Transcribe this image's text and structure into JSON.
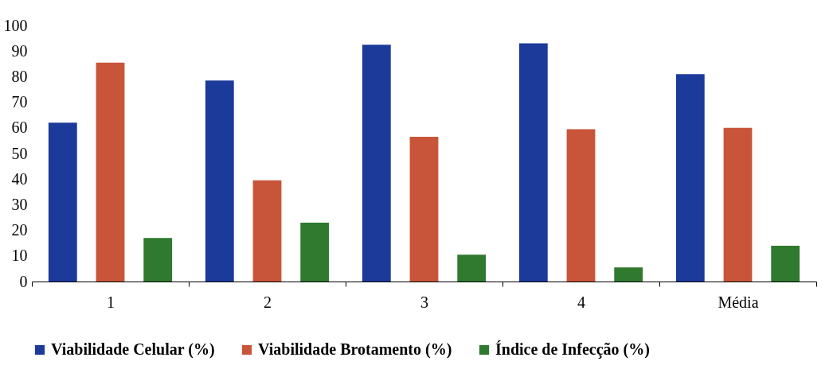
{
  "chart_data": {
    "type": "bar",
    "categories": [
      "1",
      "2",
      "3",
      "4",
      "Média"
    ],
    "series": [
      {
        "name": "Viabilidade Celular (%)",
        "color": "#1c3a9a",
        "values": [
          62,
          78.5,
          92.5,
          93,
          81
        ]
      },
      {
        "name": "Viabilidade Brotamento (%)",
        "color": "#c8553a",
        "values": [
          85.5,
          39.5,
          56.5,
          59.5,
          60
        ]
      },
      {
        "name": "Índice de Infecção (%)",
        "color": "#2f7a2f",
        "values": [
          17,
          23,
          10.5,
          5.5,
          14
        ]
      }
    ],
    "ylim": [
      0,
      100
    ],
    "yticks": [
      0,
      10,
      20,
      30,
      40,
      50,
      60,
      70,
      80,
      90,
      100
    ],
    "grid": false,
    "legend": "bottom"
  }
}
